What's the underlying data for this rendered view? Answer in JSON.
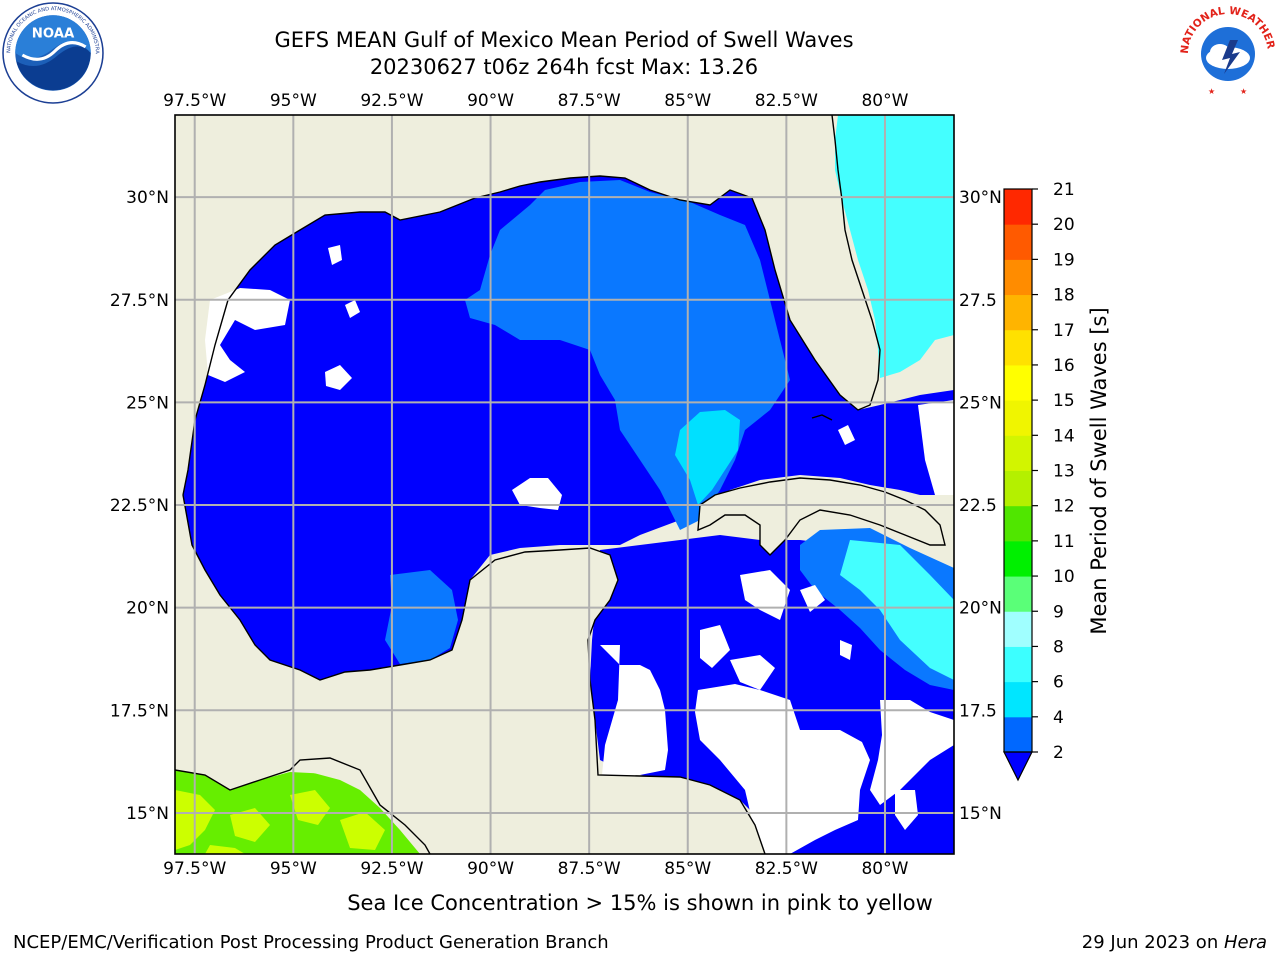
{
  "title_line1": "GEFS MEAN Gulf of Mexico Mean Period of Swell Waves",
  "title_line2": "20230627 t06z 264h fcst   Max: 13.26",
  "lon_ticks": [
    "97.5°W",
    "95°W",
    "92.5°W",
    "90°W",
    "87.5°W",
    "85°W",
    "82.5°W",
    "80°W"
  ],
  "lon_values": [
    -97.5,
    -95,
    -92.5,
    -90,
    -87.5,
    -85,
    -82.5,
    -80
  ],
  "lat_ticks_left": [
    "30°N",
    "27.5°N",
    "25°N",
    "22.5°N",
    "20°N",
    "17.5°N",
    "15°N"
  ],
  "lat_ticks_right": [
    "30°N",
    "27.5",
    "25°N",
    "22.5",
    "20°N",
    "17.5",
    "15°N"
  ],
  "lat_values": [
    30,
    27.5,
    25,
    22.5,
    20,
    17.5,
    15
  ],
  "map_extent": {
    "lon": [
      -98,
      -78.25
    ],
    "lat": [
      14,
      32
    ]
  },
  "colorbar": {
    "label": "Mean Period of Swell Waves [s]",
    "ticks": [
      "2",
      "4",
      "6",
      "8",
      "9",
      "10",
      "11",
      "12",
      "13",
      "14",
      "15",
      "16",
      "17",
      "18",
      "19",
      "20",
      "21"
    ],
    "colors": [
      "#0068ff",
      "#00e6ff",
      "#3cffff",
      "#a0ffff",
      "#5aff78",
      "#00f000",
      "#50e600",
      "#b4f000",
      "#d2f500",
      "#f0f500",
      "#ffff00",
      "#ffe100",
      "#ffb400",
      "#ff8c00",
      "#ff5a00",
      "#ff2800"
    ],
    "under_color": "#0000ff"
  },
  "colors": {
    "land": "#eeeedd",
    "gulf_main": "#0000ff",
    "swell_mid": "#0a78ff",
    "swell_light": "#00e0ff",
    "atlantic": "#44ffff",
    "pacific_green": "#66ee00",
    "pacific_yellow": "#ccff00",
    "grid": "#b0b0b0"
  },
  "footer_note": "Sea Ice Concentration > 15% is shown in pink to yellow",
  "credit": "NCEP/EMC/Verification Post Processing Product Generation Branch",
  "date_text": "29 Jun 2023 on ",
  "host_text": "Hera",
  "logos": {
    "left_logo_text": "NOAA",
    "right_logo_text": "NATIONAL WEATHER SERVICE"
  }
}
